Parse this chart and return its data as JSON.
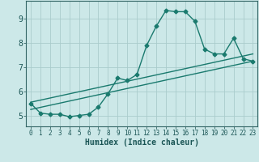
{
  "title": "",
  "xlabel": "Humidex (Indice chaleur)",
  "ylabel": "",
  "bg_color": "#cce8e8",
  "grid_color": "#aacccc",
  "line_color": "#1a7a6e",
  "xlim": [
    -0.5,
    23.5
  ],
  "ylim": [
    4.55,
    9.75
  ],
  "xticks": [
    0,
    1,
    2,
    3,
    4,
    5,
    6,
    7,
    8,
    9,
    10,
    11,
    12,
    13,
    14,
    15,
    16,
    17,
    18,
    19,
    20,
    21,
    22,
    23
  ],
  "yticks": [
    5,
    6,
    7,
    8,
    9
  ],
  "curve1_x": [
    0,
    1,
    2,
    3,
    4,
    5,
    6,
    7,
    8,
    9,
    10,
    11,
    12,
    13,
    14,
    15,
    16,
    17,
    18,
    19,
    20,
    21,
    22,
    23
  ],
  "curve1_y": [
    5.5,
    5.1,
    5.05,
    5.05,
    4.95,
    5.0,
    5.05,
    5.35,
    5.9,
    6.55,
    6.45,
    6.7,
    7.9,
    8.7,
    9.35,
    9.3,
    9.3,
    8.9,
    7.75,
    7.55,
    7.55,
    8.2,
    7.35,
    7.25
  ],
  "line2_x": [
    0,
    23
  ],
  "line2_y": [
    5.55,
    7.55
  ],
  "line3_x": [
    0,
    23
  ],
  "line3_y": [
    5.25,
    7.25
  ],
  "marker_size": 2.5,
  "line_width": 1.0
}
